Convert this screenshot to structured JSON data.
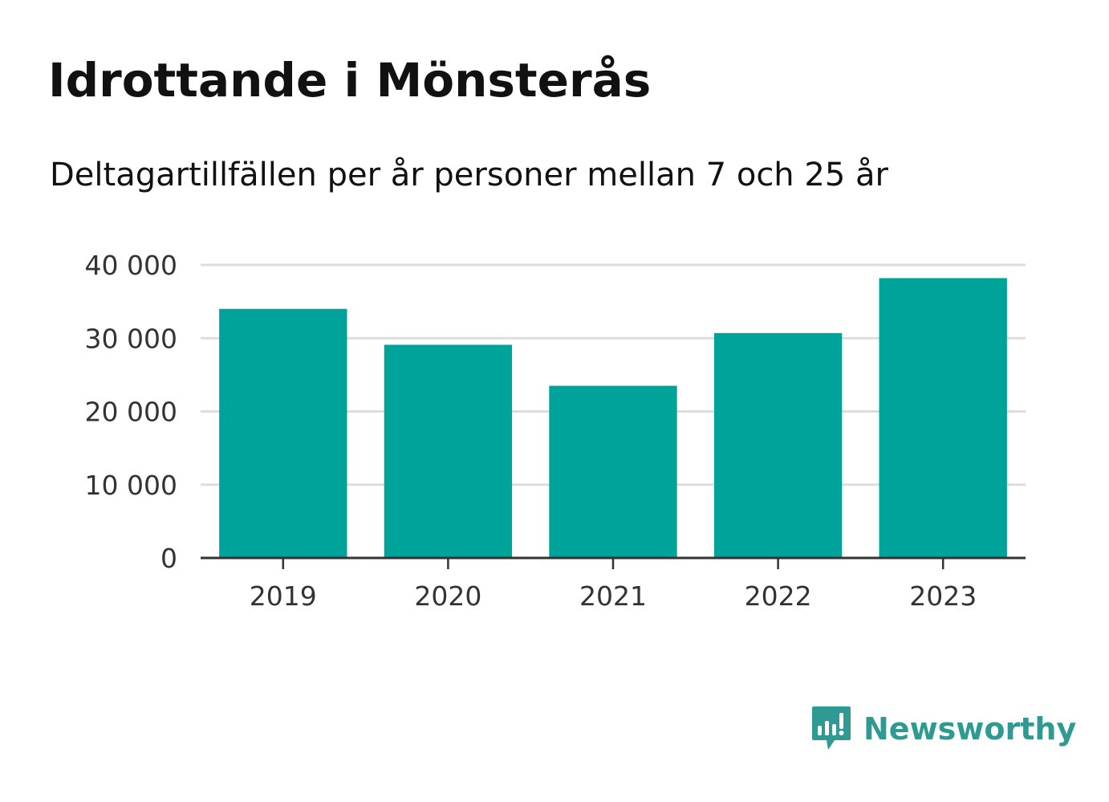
{
  "header": {
    "title": "Idrottande i Mönsterås",
    "subtitle": "Deltagartillfällen per år personer mellan 7 och 25 år"
  },
  "chart_data": {
    "type": "bar",
    "title": "Idrottande i Mönsterås",
    "subtitle": "Deltagartillfällen per år personer mellan 7 och 25 år",
    "xlabel": "",
    "ylabel": "",
    "categories": [
      "2019",
      "2020",
      "2021",
      "2022",
      "2023"
    ],
    "values": [
      34000,
      29100,
      23500,
      30700,
      38200
    ],
    "ylim": [
      0,
      40000
    ],
    "yticks": [
      0,
      10000,
      20000,
      30000,
      40000
    ],
    "ytick_labels": [
      "0",
      "10 000",
      "20 000",
      "30 000",
      "40 000"
    ],
    "grid": true,
    "legend": "none",
    "bar_color": "#00a39a",
    "grid_color": "#dddddd",
    "axis_color": "#333333"
  },
  "branding": {
    "logo_text": "Newsworthy",
    "logo_icon": "bar-chart-speech-bubble-icon",
    "logo_color": "#2f9a92"
  }
}
